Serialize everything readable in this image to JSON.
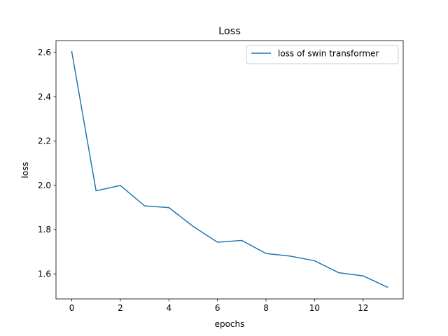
{
  "chart_data": {
    "type": "line",
    "title": "Loss",
    "xlabel": "epochs",
    "ylabel": "loss",
    "xlim": [
      -0.65,
      13.65
    ],
    "ylim": [
      1.487,
      2.653
    ],
    "xticks": [
      0,
      2,
      4,
      6,
      8,
      10,
      12
    ],
    "yticks": [
      1.6,
      1.8,
      2.0,
      2.2,
      2.4,
      2.6
    ],
    "xtick_labels": [
      "0",
      "2",
      "4",
      "6",
      "8",
      "10",
      "12"
    ],
    "ytick_labels": [
      "1.6",
      "1.8",
      "2.0",
      "2.2",
      "2.4",
      "2.6"
    ],
    "grid": false,
    "legend_position": "top-right",
    "x": [
      0,
      1,
      2,
      3,
      4,
      5,
      6,
      7,
      8,
      9,
      10,
      11,
      12,
      13
    ],
    "series": [
      {
        "name": "loss of swin transformer",
        "color": "#1f77b4",
        "values": [
          2.603,
          1.975,
          1.999,
          1.907,
          1.899,
          1.814,
          1.743,
          1.751,
          1.692,
          1.68,
          1.659,
          1.605,
          1.591,
          1.54
        ]
      }
    ]
  }
}
